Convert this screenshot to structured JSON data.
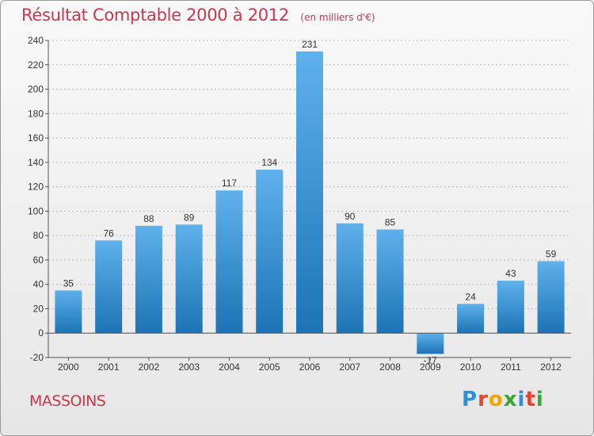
{
  "chart_title": "Résultat Comptable 2000 à 2012",
  "chart_subtitle": "(en milliers d'€)",
  "commune_name": "MASSOINS",
  "logo": {
    "text": "Proxiti",
    "letter_colors": [
      "#2f8fd8",
      "#e8432f",
      "#f2a400",
      "#3aa635",
      "#2f8fd8",
      "#e8432f",
      "#3aa635"
    ]
  },
  "colors": {
    "title": "#c8384f",
    "bar_top": "#5eb1ec",
    "bar_bottom": "#1d73b4",
    "axis": "#555555",
    "grid": "#bbbbbb"
  },
  "chart_data": {
    "type": "bar",
    "categories": [
      "2000",
      "2001",
      "2002",
      "2003",
      "2004",
      "2005",
      "2006",
      "2007",
      "2008",
      "2009",
      "2010",
      "2011",
      "2012"
    ],
    "values": [
      35,
      76,
      88,
      89,
      117,
      134,
      231,
      90,
      85,
      -17,
      24,
      43,
      59
    ],
    "value_labels": [
      "35",
      "76",
      "88",
      "89",
      "117",
      "134",
      "231",
      "90",
      "85",
      "-17",
      "24",
      "43",
      "59"
    ],
    "ylim": [
      -20,
      240
    ],
    "yticks": [
      -20,
      0,
      20,
      40,
      60,
      80,
      100,
      120,
      140,
      160,
      180,
      200,
      220,
      240
    ],
    "grid": true,
    "xlabel": "",
    "ylabel": ""
  }
}
